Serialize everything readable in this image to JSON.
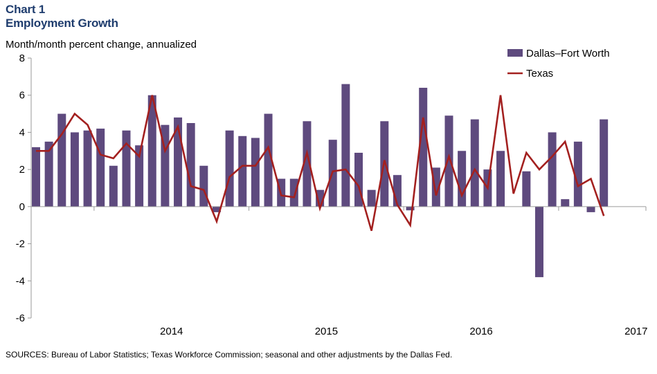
{
  "header": {
    "chart_number": "Chart 1",
    "title": "Employment Growth",
    "unit_label": "Month/month  percent change, annualized"
  },
  "footer": {
    "sources": "SOURCES: Bureau of  Labor Statistics; Texas Workforce Commission; seasonal and other adjustments by the Dallas Fed."
  },
  "colors": {
    "bars": "#5e4a7e",
    "line": "#a3201f",
    "title": "#1f3d6e"
  },
  "chart_data": {
    "type": "bar",
    "title": "Employment Growth",
    "ylabel": "Month/month  percent change, annualized",
    "ylim": [
      -6,
      8
    ],
    "yticks": [
      "8",
      "6",
      "4",
      "2",
      "0",
      "-2",
      "-4",
      "-6"
    ],
    "ytick_values": [
      8,
      6,
      4,
      2,
      0,
      -2,
      -4,
      -6
    ],
    "x_year_labels": [
      "2014",
      "2015",
      "2016",
      "2017"
    ],
    "months_start": "2013-08",
    "legend_position": "top-right",
    "grid": false,
    "series": [
      {
        "name": "Dallas–Fort Worth",
        "kind": "bar",
        "values": [
          3.2,
          3.5,
          5.0,
          4.0,
          4.1,
          4.2,
          2.2,
          4.1,
          3.3,
          6.0,
          4.4,
          4.8,
          4.5,
          2.2,
          -0.3,
          4.1,
          3.8,
          3.7,
          5.0,
          1.5,
          1.5,
          4.6,
          0.9,
          3.6,
          6.6,
          2.9,
          0.9,
          4.6,
          1.7,
          -0.2,
          6.4,
          2.1,
          4.9,
          3.0,
          4.7,
          2.0,
          3.0,
          0.0,
          1.9,
          -3.8,
          4.0,
          0.4,
          3.5,
          -0.3,
          4.7
        ]
      },
      {
        "name": "Texas",
        "kind": "line",
        "values": [
          3.0,
          3.0,
          3.9,
          5.0,
          4.4,
          2.8,
          2.6,
          3.4,
          2.7,
          6.0,
          3.0,
          4.3,
          1.1,
          0.9,
          -0.8,
          1.6,
          2.2,
          2.2,
          3.2,
          0.6,
          0.5,
          2.9,
          -0.1,
          1.9,
          2.0,
          1.1,
          -1.3,
          2.5,
          0.1,
          -1.0,
          4.8,
          0.6,
          2.7,
          0.6,
          2.0,
          1.0,
          6.0,
          0.7,
          2.9,
          2.0,
          2.7,
          3.5,
          1.1,
          1.5,
          -0.5
        ]
      }
    ]
  }
}
